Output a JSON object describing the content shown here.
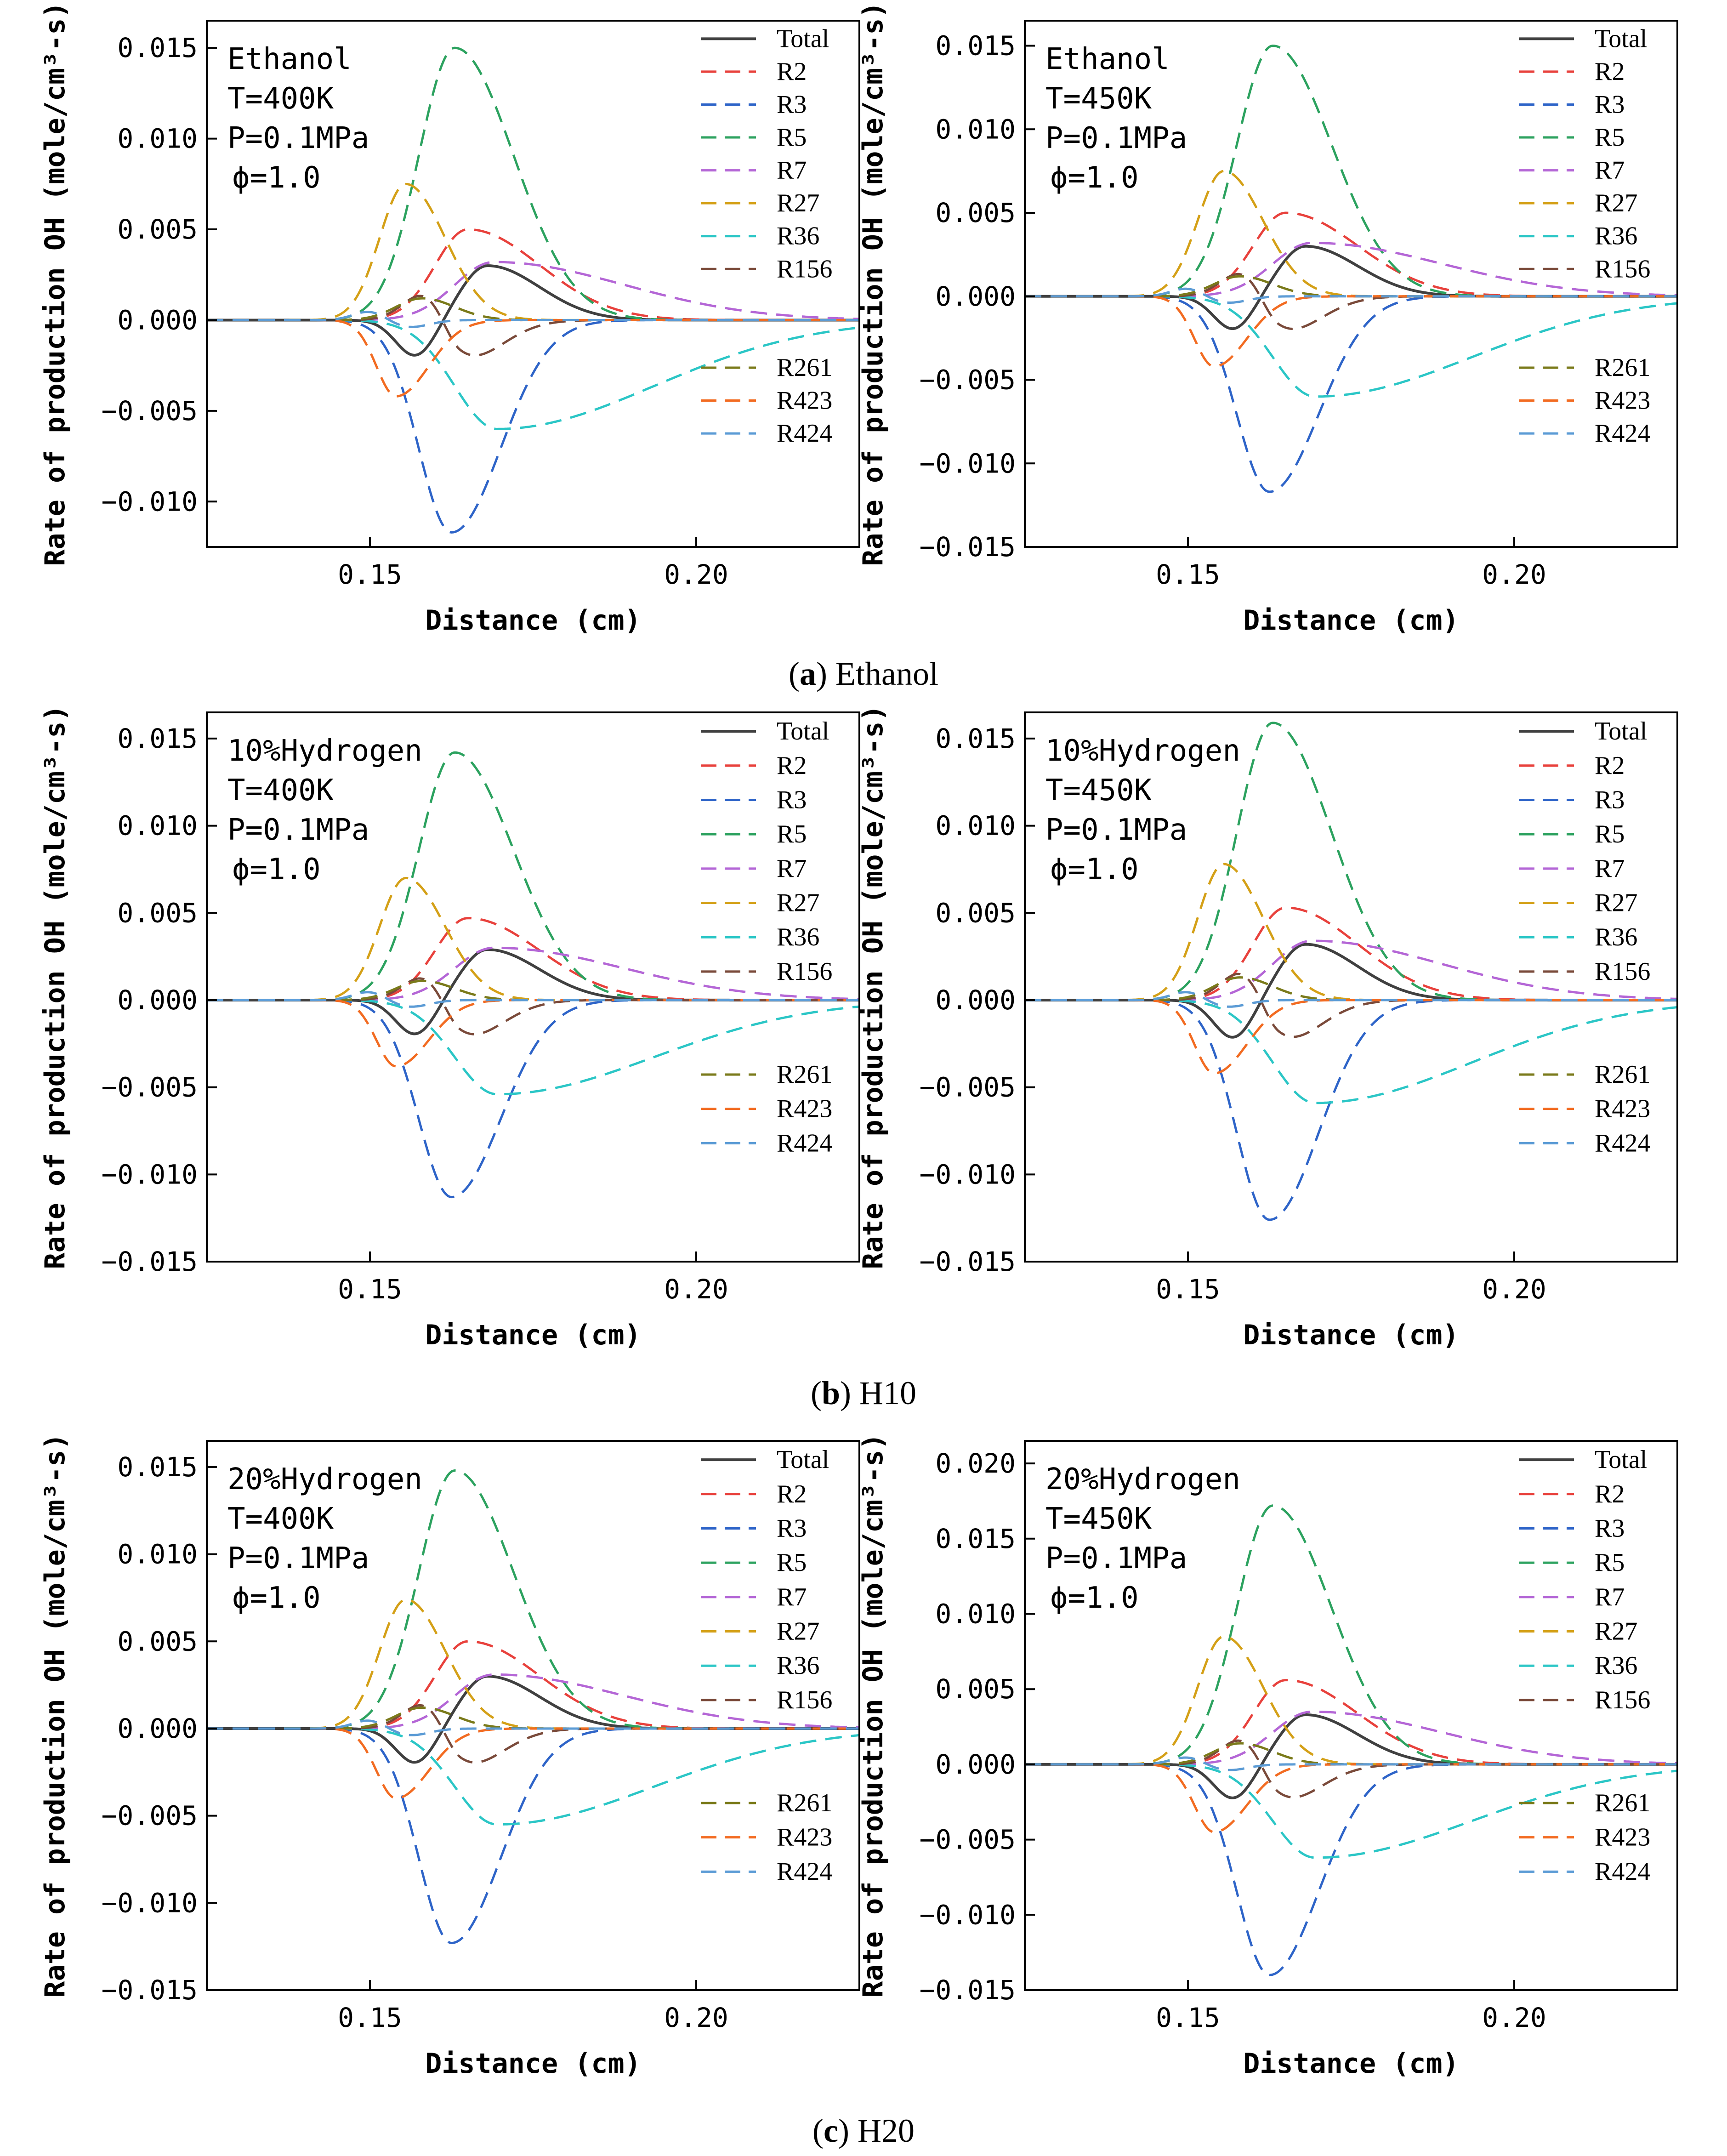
{
  "chart_data": [
    {
      "id": "a_left",
      "type": "line",
      "row": 0,
      "col": 0,
      "annotation": [
        "Ethanol",
        "T=400K",
        "P=0.1MPa",
        "ϕ=1.0"
      ],
      "xlabel": "Distance (cm)",
      "ylabel": "Rate of production OH (mole/cm³-s)",
      "xlim": [
        0.125,
        0.225
      ],
      "ylim": [
        -0.0125,
        0.0165
      ],
      "xticks": [
        0.15,
        0.2
      ],
      "xtick_labels": [
        "0.15",
        "0.20"
      ],
      "yticks": [
        -0.01,
        -0.005,
        0.0,
        0.005,
        0.01,
        0.015
      ],
      "ytick_labels": [
        "−0.010",
        "−0.005",
        "0.000",
        "0.005",
        "0.010",
        "0.015"
      ],
      "peaks": {
        "Total": [
          0.003,
          -0.002
        ],
        "R2": [
          0.005,
          0
        ],
        "R3": [
          0,
          -0.0117
        ],
        "R5": [
          0.015,
          0
        ],
        "R7": [
          0.0032,
          0
        ],
        "R27": [
          0.0075,
          0
        ],
        "R36": [
          0,
          -0.006
        ],
        "R156": [
          0.0017,
          -0.0023
        ],
        "R261": [
          0.0012,
          0
        ],
        "R423": [
          0,
          -0.0042
        ],
        "R424": [
          0.0005,
          -0.0004
        ]
      },
      "series": []
    },
    {
      "id": "a_right",
      "type": "line",
      "row": 0,
      "col": 1,
      "annotation": [
        "Ethanol",
        "T=450K",
        "P=0.1MPa",
        "ϕ=1.0"
      ],
      "xlabel": "Distance (cm)",
      "ylabel": "Rate of production OH (mole/cm³-s)",
      "xlim": [
        0.125,
        0.225
      ],
      "ylim": [
        -0.015,
        0.0165
      ],
      "xticks": [
        0.15,
        0.2
      ],
      "xtick_labels": [
        "0.15",
        "0.20"
      ],
      "yticks": [
        -0.015,
        -0.01,
        -0.005,
        0.0,
        0.005,
        0.01,
        0.015
      ],
      "ytick_labels": [
        "−0.015",
        "−0.010",
        "−0.005",
        "0.000",
        "0.005",
        "0.010",
        "0.015"
      ],
      "peaks": {
        "Total": [
          0.003,
          -0.002
        ],
        "R2": [
          0.005,
          0
        ],
        "R3": [
          0,
          -0.0117
        ],
        "R5": [
          0.015,
          0
        ],
        "R7": [
          0.0032,
          0
        ],
        "R27": [
          0.0075,
          0
        ],
        "R36": [
          0,
          -0.006
        ],
        "R156": [
          0.0017,
          -0.0023
        ],
        "R261": [
          0.0012,
          0
        ],
        "R423": [
          0,
          -0.0042
        ],
        "R424": [
          0.0005,
          -0.0004
        ]
      },
      "series": []
    },
    {
      "id": "b_left",
      "type": "line",
      "row": 1,
      "col": 0,
      "annotation": [
        "10%Hydrogen",
        "T=400K",
        "P=0.1MPa",
        "ϕ=1.0"
      ],
      "xlabel": "Distance (cm)",
      "ylabel": "Rate of production OH (mole/cm³-s)",
      "xlim": [
        0.125,
        0.225
      ],
      "ylim": [
        -0.015,
        0.0165
      ],
      "xticks": [
        0.15,
        0.2
      ],
      "xtick_labels": [
        "0.15",
        "0.20"
      ],
      "yticks": [
        -0.015,
        -0.01,
        -0.005,
        0.0,
        0.005,
        0.01,
        0.015
      ],
      "ytick_labels": [
        "−0.015",
        "−0.010",
        "−0.005",
        "0.000",
        "0.005",
        "0.010",
        "0.015"
      ],
      "peaks": {
        "Total": [
          0.0029,
          -0.002
        ],
        "R2": [
          0.0047,
          0
        ],
        "R3": [
          0,
          -0.0113
        ],
        "R5": [
          0.0142,
          0
        ],
        "R7": [
          0.003,
          0
        ],
        "R27": [
          0.007,
          0
        ],
        "R36": [
          0,
          -0.0054
        ],
        "R156": [
          0.0016,
          -0.0023
        ],
        "R261": [
          0.0011,
          0
        ],
        "R423": [
          0,
          -0.0038
        ],
        "R424": [
          0.0005,
          -0.0004
        ]
      },
      "series": []
    },
    {
      "id": "b_right",
      "type": "line",
      "row": 1,
      "col": 1,
      "annotation": [
        "10%Hydrogen",
        "T=450K",
        "P=0.1MPa",
        "ϕ=1.0"
      ],
      "xlabel": "Distance (cm)",
      "ylabel": "Rate of production OH (mole/cm³-s)",
      "xlim": [
        0.125,
        0.225
      ],
      "ylim": [
        -0.015,
        0.0165
      ],
      "xticks": [
        0.15,
        0.2
      ],
      "xtick_labels": [
        "0.15",
        "0.20"
      ],
      "yticks": [
        -0.015,
        -0.01,
        -0.005,
        0.0,
        0.005,
        0.01,
        0.015
      ],
      "ytick_labels": [
        "−0.015",
        "−0.010",
        "−0.005",
        "0.000",
        "0.005",
        "0.010",
        "0.015"
      ],
      "peaks": {
        "Total": [
          0.0032,
          -0.0022
        ],
        "R2": [
          0.0053,
          0
        ],
        "R3": [
          0,
          -0.0126
        ],
        "R5": [
          0.0159,
          0
        ],
        "R7": [
          0.0034,
          0
        ],
        "R27": [
          0.0078,
          0
        ],
        "R36": [
          0,
          -0.0059
        ],
        "R156": [
          0.0019,
          -0.0025
        ],
        "R261": [
          0.0013,
          0
        ],
        "R423": [
          0,
          -0.0042
        ],
        "R424": [
          0.0005,
          -0.0004
        ]
      },
      "series": []
    },
    {
      "id": "c_left",
      "type": "line",
      "row": 2,
      "col": 0,
      "annotation": [
        "20%Hydrogen",
        "T=400K",
        "P=0.1MPa",
        "ϕ=1.0"
      ],
      "xlabel": "Distance (cm)",
      "ylabel": "Rate of production OH (mole/cm³-s)",
      "xlim": [
        0.125,
        0.225
      ],
      "ylim": [
        -0.015,
        0.0165
      ],
      "xticks": [
        0.15,
        0.2
      ],
      "xtick_labels": [
        "0.15",
        "0.20"
      ],
      "yticks": [
        -0.015,
        -0.01,
        -0.005,
        0.0,
        0.005,
        0.01,
        0.015
      ],
      "ytick_labels": [
        "−0.015",
        "−0.010",
        "−0.005",
        "0.000",
        "0.005",
        "0.010",
        "0.015"
      ],
      "peaks": {
        "Total": [
          0.003,
          -0.002
        ],
        "R2": [
          0.005,
          0
        ],
        "R3": [
          0,
          -0.0123
        ],
        "R5": [
          0.0148,
          0
        ],
        "R7": [
          0.0031,
          0
        ],
        "R27": [
          0.0074,
          0
        ],
        "R36": [
          0,
          -0.0055
        ],
        "R156": [
          0.0017,
          -0.0023
        ],
        "R261": [
          0.0012,
          0
        ],
        "R423": [
          0,
          -0.004
        ],
        "R424": [
          0.0005,
          -0.0004
        ]
      },
      "series": []
    },
    {
      "id": "c_right",
      "type": "line",
      "row": 2,
      "col": 1,
      "annotation": [
        "20%Hydrogen",
        "T=450K",
        "P=0.1MPa",
        "ϕ=1.0"
      ],
      "xlabel": "Distance (cm)",
      "ylabel": "Rate of production OH (mole/cm³-s)",
      "xlim": [
        0.125,
        0.225
      ],
      "ylim": [
        -0.015,
        0.0215
      ],
      "xticks": [
        0.15,
        0.2
      ],
      "xtick_labels": [
        "0.15",
        "0.20"
      ],
      "yticks": [
        -0.015,
        -0.01,
        -0.005,
        0.0,
        0.005,
        0.01,
        0.015,
        0.02
      ],
      "ytick_labels": [
        "−0.015",
        "−0.010",
        "−0.005",
        "0.000",
        "0.005",
        "0.010",
        "0.015",
        "0.020"
      ],
      "peaks": {
        "Total": [
          0.0033,
          -0.0023
        ],
        "R2": [
          0.0056,
          0
        ],
        "R3": [
          0,
          -0.014
        ],
        "R5": [
          0.0172,
          0
        ],
        "R7": [
          0.0035,
          0
        ],
        "R27": [
          0.0085,
          0
        ],
        "R36": [
          0,
          -0.0062
        ],
        "R156": [
          0.002,
          -0.0026
        ],
        "R261": [
          0.0014,
          0
        ],
        "R423": [
          0,
          -0.0045
        ],
        "R424": [
          0.0005,
          -0.0004
        ]
      },
      "series": []
    }
  ],
  "legend": {
    "top_group": [
      "Total",
      "R2",
      "R3",
      "R5",
      "R7",
      "R27",
      "R36",
      "R156"
    ],
    "bottom_group": [
      "R261",
      "R423",
      "R424"
    ]
  },
  "series_colors": {
    "Total": "#404040",
    "R2": "#e8413c",
    "R3": "#2e64c8",
    "R5": "#2ca25f",
    "R7": "#b466d6",
    "R27": "#d4a017",
    "R36": "#2bc6c6",
    "R156": "#7a4a3a",
    "R261": "#7a7a1a",
    "R423": "#f26b21",
    "R424": "#5b9bd5"
  },
  "captions": [
    {
      "label": "a",
      "text": " Ethanol"
    },
    {
      "label": "b",
      "text": " H10"
    },
    {
      "label": "c",
      "text": " H20"
    }
  ]
}
